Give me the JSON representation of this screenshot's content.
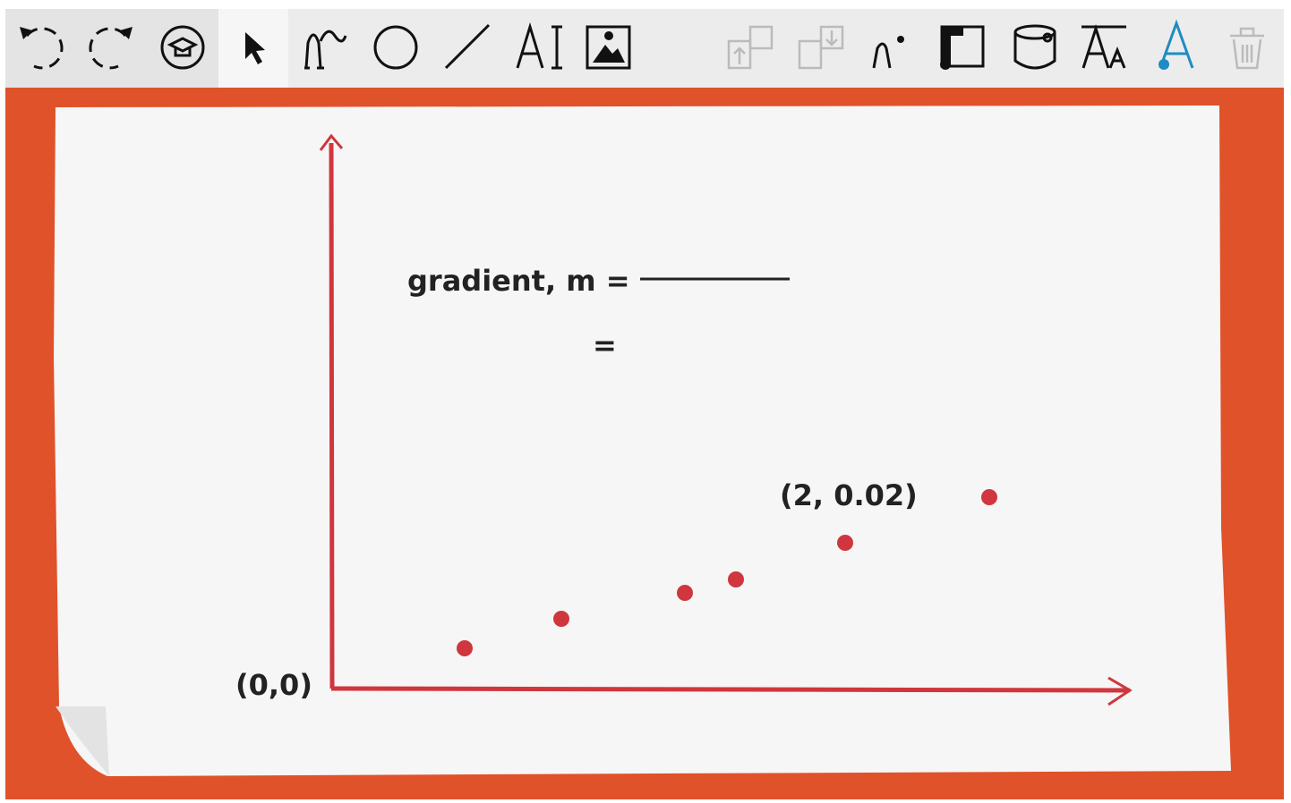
{
  "canvas": {
    "formula_label": "gradient, m =",
    "equals": "=",
    "point_label": "(2, 0.02)",
    "origin_label": "(0,0)"
  }
}
